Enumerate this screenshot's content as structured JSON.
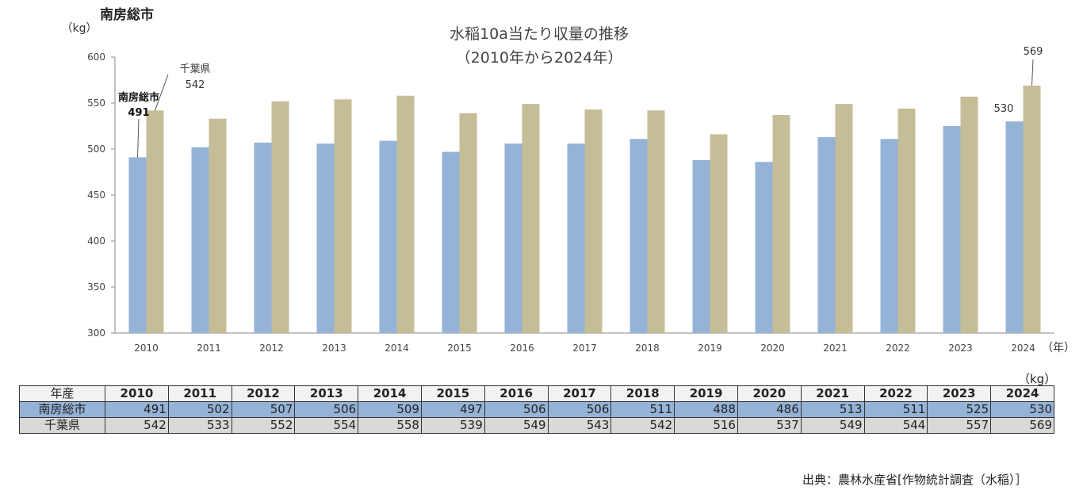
{
  "heading": "南房総市",
  "chart_data": {
    "type": "bar",
    "title": "水稲10a当たり収量の推移",
    "subtitle": "（2010年から2024年）",
    "ylabel": "（kg）",
    "xlabel": "（年）",
    "ylim": [
      300,
      600
    ],
    "yticks": [
      300,
      350,
      400,
      450,
      500,
      550,
      600
    ],
    "categories": [
      "2010",
      "2011",
      "2012",
      "2013",
      "2014",
      "2015",
      "2016",
      "2017",
      "2018",
      "2019",
      "2020",
      "2021",
      "2022",
      "2023",
      "2024"
    ],
    "series": [
      {
        "name": "南房総市",
        "color": "#95b3d7",
        "values": [
          491,
          502,
          507,
          506,
          509,
          497,
          506,
          506,
          511,
          488,
          486,
          513,
          511,
          525,
          530
        ]
      },
      {
        "name": "千葉県",
        "color": "#c4bd97",
        "values": [
          542,
          533,
          552,
          554,
          558,
          539,
          549,
          543,
          542,
          516,
          537,
          549,
          544,
          557,
          569
        ]
      }
    ],
    "annotations": {
      "city_name": "南房総市",
      "city_value": "491",
      "pref_name": "千葉県",
      "pref_value": "542",
      "city_last": "530",
      "pref_last": "569"
    }
  },
  "table": {
    "unit": "（kg）",
    "header_label": "年産",
    "rows": [
      {
        "label": "南房総市",
        "values": [
          "491",
          "502",
          "507",
          "506",
          "509",
          "497",
          "506",
          "506",
          "511",
          "488",
          "486",
          "513",
          "511",
          "525",
          "530"
        ]
      },
      {
        "label": "千葉県",
        "values": [
          "542",
          "533",
          "552",
          "554",
          "558",
          "539",
          "549",
          "543",
          "542",
          "516",
          "537",
          "549",
          "544",
          "557",
          "569"
        ]
      }
    ]
  },
  "source": "出典：農林水産省[作物統計調査（水稲）］"
}
